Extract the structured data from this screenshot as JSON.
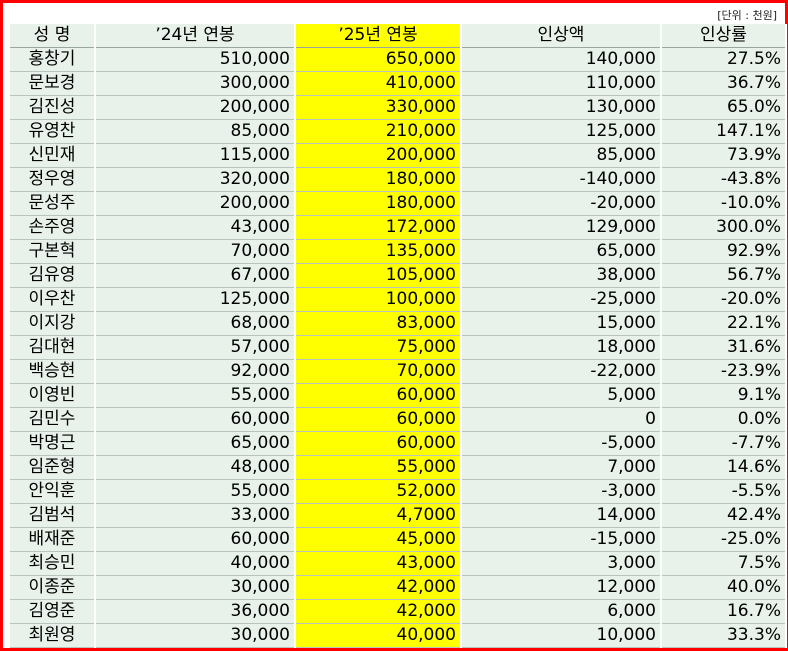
{
  "unit_note": "[단위 : 천원]",
  "headers": [
    "성   명",
    "’24년 연봉",
    "’25년 연봉",
    "인상액",
    "인상률"
  ],
  "rows": [
    [
      "홍창기",
      "510,000",
      "650,000",
      "140,000",
      "27.5%"
    ],
    [
      "문보경",
      "300,000",
      "410,000",
      "110,000",
      "36.7%"
    ],
    [
      "김진성",
      "200,000",
      "330,000",
      "130,000",
      "65.0%"
    ],
    [
      "유영찬",
      "85,000",
      "210,000",
      "125,000",
      "147.1%"
    ],
    [
      "신민재",
      "115,000",
      "200,000",
      "85,000",
      "73.9%"
    ],
    [
      "정우영",
      "320,000",
      "180,000",
      "-140,000",
      "-43.8%"
    ],
    [
      "문성주",
      "200,000",
      "180,000",
      "-20,000",
      "-10.0%"
    ],
    [
      "손주영",
      "43,000",
      "172,000",
      "129,000",
      "300.0%"
    ],
    [
      "구본혁",
      "70,000",
      "135,000",
      "65,000",
      "92.9%"
    ],
    [
      "김유영",
      "67,000",
      "105,000",
      "38,000",
      "56.7%"
    ],
    [
      "이우찬",
      "125,000",
      "100,000",
      "-25,000",
      "-20.0%"
    ],
    [
      "이지강",
      "68,000",
      "83,000",
      "15,000",
      "22.1%"
    ],
    [
      "김대현",
      "57,000",
      "75,000",
      "18,000",
      "31.6%"
    ],
    [
      "백승현",
      "92,000",
      "70,000",
      "-22,000",
      "-23.9%"
    ],
    [
      "이영빈",
      "55,000",
      "60,000",
      "5,000",
      "9.1%"
    ],
    [
      "김민수",
      "60,000",
      "60,000",
      "0",
      "0.0%"
    ],
    [
      "박명근",
      "65,000",
      "60,000",
      "-5,000",
      "-7.7%"
    ],
    [
      "임준형",
      "48,000",
      "55,000",
      "7,000",
      "14.6%"
    ],
    [
      "안익훈",
      "55,000",
      "52,000",
      "-3,000",
      "-5.5%"
    ],
    [
      "김범석",
      "33,000",
      "4,7000",
      "14,000",
      "42.4%"
    ],
    [
      "배재준",
      "60,000",
      "45,000",
      "-15,000",
      "-25.0%"
    ],
    [
      "최승민",
      "40,000",
      "43,000",
      "3,000",
      "7.5%"
    ],
    [
      "이종준",
      "30,000",
      "42,000",
      "12,000",
      "40.0%"
    ],
    [
      "김영준",
      "36,000",
      "42,000",
      "6,000",
      "16.7%"
    ],
    [
      "최원영",
      "30,000",
      "40,000",
      "10,000",
      "33.3%"
    ]
  ],
  "colors": {
    "border": "#ff0000",
    "highlight": "#ffff00",
    "cell": "#e8f1ea"
  }
}
